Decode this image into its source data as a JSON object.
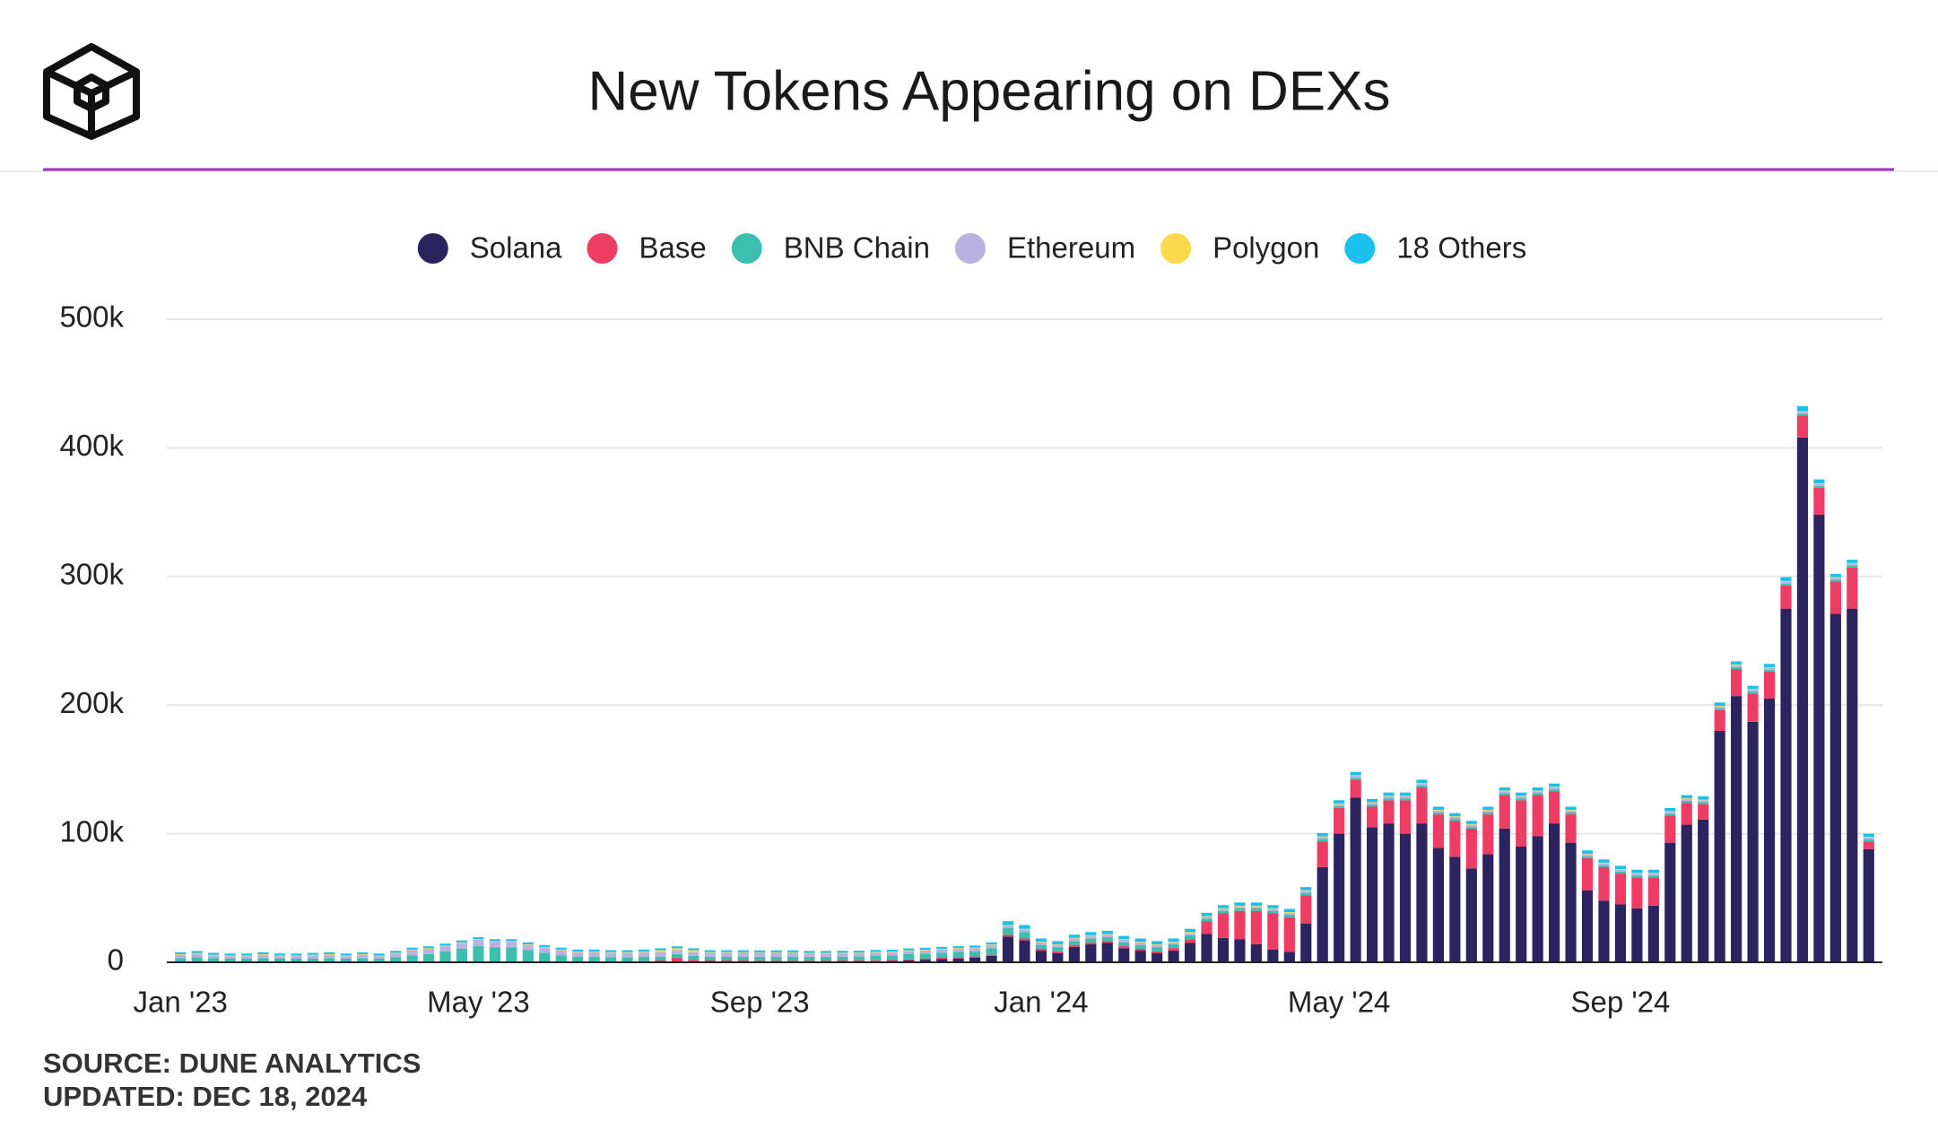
{
  "chart_data": {
    "type": "stacked_bar",
    "title": "New Tokens Appearing on DEXs",
    "source": "SOURCE: DUNE ANALYTICS",
    "updated": "UPDATED: DEC 18, 2024",
    "categories": [
      "Jan '23",
      null,
      null,
      null,
      null,
      null,
      null,
      null,
      null,
      null,
      null,
      null,
      null,
      null,
      null,
      null,
      null,
      null,
      "May '23",
      null,
      null,
      null,
      null,
      null,
      null,
      null,
      null,
      null,
      null,
      null,
      null,
      null,
      null,
      null,
      null,
      "Sep '23",
      null,
      null,
      null,
      null,
      null,
      null,
      null,
      null,
      null,
      null,
      null,
      null,
      null,
      null,
      null,
      null,
      "Jan '24",
      null,
      null,
      null,
      null,
      null,
      null,
      null,
      null,
      null,
      null,
      null,
      null,
      null,
      null,
      null,
      null,
      null,
      "May '24",
      null,
      null,
      null,
      null,
      null,
      null,
      null,
      null,
      null,
      null,
      null,
      null,
      null,
      null,
      null,
      null,
      "Sep '24",
      null,
      null,
      null,
      null,
      null,
      null,
      null,
      null,
      null,
      null,
      null,
      null,
      null,
      null,
      null
    ],
    "ylim": [
      0,
      500000
    ],
    "yticks": [
      0,
      {
        "value": 100000,
        "label": "100k"
      },
      {
        "value": 200000,
        "label": "200k"
      },
      {
        "value": 300000,
        "label": "300k"
      },
      {
        "value": 400000,
        "label": "400k"
      },
      {
        "value": 500000,
        "label": "500k"
      }
    ],
    "grid": true,
    "legend": "top",
    "series": [
      {
        "name": "Solana",
        "color": "#2b2461",
        "values": [
          300,
          300,
          300,
          300,
          300,
          300,
          300,
          300,
          300,
          300,
          300,
          300,
          300,
          400,
          400,
          400,
          500,
          500,
          500,
          500,
          500,
          500,
          400,
          400,
          400,
          400,
          400,
          400,
          400,
          400,
          400,
          400,
          400,
          400,
          400,
          500,
          500,
          500,
          500,
          500,
          600,
          700,
          800,
          1000,
          1500,
          2000,
          2500,
          3000,
          3500,
          5000,
          20000,
          17000,
          9000,
          7000,
          12000,
          14000,
          15000,
          11000,
          9000,
          7000,
          9000,
          15000,
          22000,
          19000,
          18000,
          14000,
          10000,
          8000,
          30000,
          74000,
          100000,
          128000,
          105000,
          108000,
          100000,
          108000,
          89000,
          82000,
          73000,
          84000,
          104000,
          90000,
          98000,
          108000,
          93000,
          56000,
          48000,
          45000,
          42000,
          44000,
          93000,
          107000,
          111000,
          180000,
          207000,
          187000,
          205000,
          275000,
          408000,
          348000,
          271000,
          275000,
          88000
        ]
      },
      {
        "name": "Base",
        "color": "#ee3d64",
        "values": [
          0,
          0,
          0,
          0,
          0,
          0,
          0,
          0,
          0,
          0,
          0,
          0,
          0,
          0,
          0,
          0,
          0,
          0,
          0,
          0,
          0,
          0,
          0,
          0,
          0,
          0,
          0,
          0,
          500,
          1000,
          3000,
          1500,
          1000,
          1000,
          1000,
          800,
          800,
          800,
          800,
          800,
          800,
          800,
          800,
          800,
          800,
          800,
          1000,
          1000,
          1000,
          1000,
          1500,
          1500,
          1500,
          1500,
          1500,
          1500,
          1500,
          1500,
          1500,
          1500,
          2000,
          3000,
          10000,
          19000,
          22000,
          26000,
          28000,
          27000,
          22000,
          20000,
          20000,
          14000,
          16000,
          18000,
          26000,
          28000,
          26000,
          28000,
          31000,
          31000,
          26000,
          36000,
          32000,
          25000,
          22000,
          25000,
          26000,
          24000,
          24000,
          22000,
          21000,
          17000,
          12000,
          16000,
          21000,
          22000,
          21000,
          18000,
          17000,
          21000,
          25000,
          32000,
          6000
        ]
      },
      {
        "name": "BNB Chain",
        "color": "#3dbfae",
        "values": [
          3000,
          3500,
          3000,
          2500,
          2500,
          3000,
          2500,
          2500,
          2500,
          3000,
          2500,
          3000,
          2500,
          3500,
          5000,
          6000,
          8000,
          10000,
          12000,
          11000,
          11000,
          9000,
          7000,
          5000,
          4000,
          4000,
          3500,
          3500,
          3500,
          3000,
          3000,
          3000,
          3000,
          3000,
          3000,
          3000,
          3000,
          3000,
          3000,
          3000,
          3000,
          3000,
          3500,
          3500,
          4000,
          4000,
          4000,
          4000,
          4000,
          5000,
          5000,
          5000,
          3000,
          3000,
          3000,
          3000,
          3000,
          3000,
          3000,
          3000,
          3000,
          3000,
          2000,
          2000,
          2000,
          2000,
          2000,
          2000,
          2000,
          2000,
          1500,
          1500,
          1500,
          1500,
          1500,
          1500,
          1500,
          1500,
          1500,
          1500,
          1500,
          1500,
          1500,
          1500,
          1500,
          1500,
          1500,
          1500,
          1500,
          1500,
          1500,
          1500,
          1500,
          1500,
          1500,
          1500,
          1500,
          1500,
          1500,
          1500,
          1500,
          1500,
          1500
        ]
      },
      {
        "name": "Ethereum",
        "color": "#b9b2e0",
        "values": [
          2500,
          3000,
          2000,
          2000,
          2000,
          2500,
          2000,
          2000,
          2500,
          2500,
          2000,
          2500,
          2000,
          3000,
          4000,
          4000,
          4000,
          4500,
          5000,
          4500,
          4500,
          4000,
          4000,
          4000,
          3500,
          3500,
          3500,
          3500,
          3500,
          3500,
          3000,
          3000,
          3000,
          3000,
          3000,
          3000,
          3000,
          3000,
          2500,
          2500,
          2500,
          2500,
          2500,
          2500,
          2500,
          2500,
          2500,
          2500,
          2500,
          2500,
          2000,
          2000,
          2000,
          2000,
          2000,
          2000,
          2000,
          2000,
          2000,
          2000,
          1500,
          1500,
          1500,
          1500,
          1500,
          1500,
          1500,
          1500,
          1500,
          1500,
          1500,
          1500,
          1500,
          1500,
          1500,
          1500,
          1500,
          1500,
          1500,
          1500,
          1500,
          1500,
          1500,
          1500,
          1500,
          1500,
          1500,
          1500,
          1500,
          1500,
          1500,
          1500,
          1500,
          1500,
          1500,
          1500,
          1500,
          1500,
          1500,
          1500,
          1500,
          1500,
          1500
        ]
      },
      {
        "name": "Polygon",
        "color": "#fbd94a",
        "values": [
          500,
          500,
          500,
          500,
          500,
          500,
          500,
          500,
          500,
          500,
          500,
          500,
          500,
          500,
          500,
          500,
          500,
          500,
          500,
          500,
          500,
          500,
          500,
          500,
          500,
          500,
          500,
          500,
          500,
          1500,
          1500,
          1500,
          500,
          500,
          500,
          500,
          500,
          500,
          500,
          500,
          500,
          500,
          500,
          500,
          500,
          500,
          500,
          500,
          500,
          500,
          500,
          500,
          500,
          500,
          500,
          500,
          500,
          500,
          500,
          500,
          500,
          1000,
          500,
          500,
          500,
          500,
          500,
          500,
          500,
          500,
          500,
          500,
          500,
          500,
          500,
          500,
          500,
          500,
          500,
          500,
          500,
          500,
          500,
          500,
          500,
          500,
          500,
          500,
          500,
          500,
          500,
          500,
          500,
          500,
          500,
          500,
          500,
          500,
          500,
          500,
          500,
          500,
          500
        ]
      },
      {
        "name": "18 Others",
        "color": "#19c1ec",
        "values": [
          1500,
          1500,
          1500,
          1500,
          1500,
          1500,
          1500,
          1500,
          1500,
          1500,
          1500,
          1500,
          1500,
          1500,
          1500,
          1500,
          1500,
          1500,
          1500,
          1500,
          1500,
          1500,
          1500,
          1500,
          1500,
          1500,
          1500,
          1500,
          1500,
          1500,
          1500,
          1500,
          1500,
          1500,
          1500,
          1500,
          1500,
          1500,
          1500,
          1500,
          1500,
          1500,
          1500,
          1500,
          1500,
          1500,
          1500,
          1500,
          1500,
          1500,
          3000,
          3000,
          2500,
          2500,
          2500,
          2500,
          2500,
          2500,
          2500,
          2500,
          2500,
          2500,
          2500,
          2500,
          2500,
          2500,
          2500,
          2500,
          2500,
          2500,
          2500,
          2500,
          2500,
          2500,
          2500,
          2500,
          2500,
          2500,
          2500,
          2500,
          2500,
          2500,
          2500,
          2500,
          2500,
          2500,
          2500,
          2500,
          2500,
          2500,
          2500,
          2500,
          2500,
          2500,
          2500,
          2500,
          2500,
          3000,
          4000,
          3000,
          2500,
          2500,
          2500
        ]
      }
    ]
  }
}
